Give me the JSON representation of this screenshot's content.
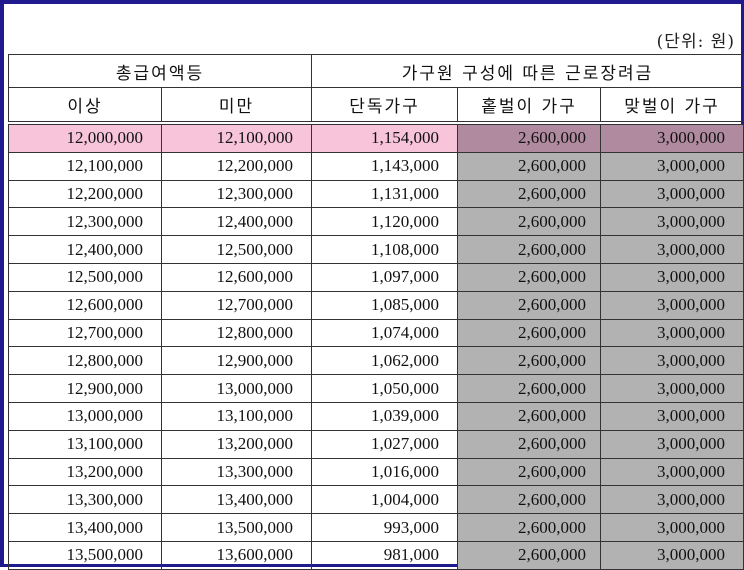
{
  "unit_note": "(단위: 원)",
  "header": {
    "group1": "총급여액등",
    "group2": "가구원 구성에 따른 근로장려금",
    "col_min": "이상",
    "col_max": "미만",
    "col_single": "단독가구",
    "col_single_earner": "홑벌이 가구",
    "col_dual_earner": "맞벌이 가구"
  },
  "rows": [
    {
      "min": "12,000,000",
      "max": "12,100,000",
      "single": "1,154,000",
      "single_earner": "2,600,000",
      "dual_earner": "3,000,000",
      "highlighted": true
    },
    {
      "min": "12,100,000",
      "max": "12,200,000",
      "single": "1,143,000",
      "single_earner": "2,600,000",
      "dual_earner": "3,000,000"
    },
    {
      "min": "12,200,000",
      "max": "12,300,000",
      "single": "1,131,000",
      "single_earner": "2,600,000",
      "dual_earner": "3,000,000"
    },
    {
      "min": "12,300,000",
      "max": "12,400,000",
      "single": "1,120,000",
      "single_earner": "2,600,000",
      "dual_earner": "3,000,000"
    },
    {
      "min": "12,400,000",
      "max": "12,500,000",
      "single": "1,108,000",
      "single_earner": "2,600,000",
      "dual_earner": "3,000,000"
    },
    {
      "min": "12,500,000",
      "max": "12,600,000",
      "single": "1,097,000",
      "single_earner": "2,600,000",
      "dual_earner": "3,000,000"
    },
    {
      "min": "12,600,000",
      "max": "12,700,000",
      "single": "1,085,000",
      "single_earner": "2,600,000",
      "dual_earner": "3,000,000"
    },
    {
      "min": "12,700,000",
      "max": "12,800,000",
      "single": "1,074,000",
      "single_earner": "2,600,000",
      "dual_earner": "3,000,000"
    },
    {
      "min": "12,800,000",
      "max": "12,900,000",
      "single": "1,062,000",
      "single_earner": "2,600,000",
      "dual_earner": "3,000,000"
    },
    {
      "min": "12,900,000",
      "max": "13,000,000",
      "single": "1,050,000",
      "single_earner": "2,600,000",
      "dual_earner": "3,000,000"
    },
    {
      "min": "13,000,000",
      "max": "13,100,000",
      "single": "1,039,000",
      "single_earner": "2,600,000",
      "dual_earner": "3,000,000"
    },
    {
      "min": "13,100,000",
      "max": "13,200,000",
      "single": "1,027,000",
      "single_earner": "2,600,000",
      "dual_earner": "3,000,000"
    },
    {
      "min": "13,200,000",
      "max": "13,300,000",
      "single": "1,016,000",
      "single_earner": "2,600,000",
      "dual_earner": "3,000,000"
    },
    {
      "min": "13,300,000",
      "max": "13,400,000",
      "single": "1,004,000",
      "single_earner": "2,600,000",
      "dual_earner": "3,000,000"
    },
    {
      "min": "13,400,000",
      "max": "13,500,000",
      "single": "993,000",
      "single_earner": "2,600,000",
      "dual_earner": "3,000,000"
    },
    {
      "min": "13,500,000",
      "max": "13,600,000",
      "single": "981,000",
      "single_earner": "2,600,000",
      "dual_earner": "3,000,000"
    }
  ],
  "colors": {
    "frame": "#1f1b8f",
    "highlight_row": "#f7c4da",
    "shaded_columns": "#b2b2b2",
    "highlight_shaded": "#b08a9e"
  }
}
